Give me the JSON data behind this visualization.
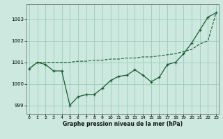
{
  "xlabel": "Graphe pression niveau de la mer (hPa)",
  "background_color": "#cce8df",
  "plot_bg_color": "#cce8df",
  "grid_color": "#99ccbb",
  "line_color": "#1a5c30",
  "x_values": [
    0,
    1,
    2,
    3,
    4,
    5,
    6,
    7,
    8,
    9,
    10,
    11,
    12,
    13,
    14,
    15,
    16,
    17,
    18,
    19,
    20,
    21,
    22,
    23
  ],
  "line1": [
    1000.7,
    1001.0,
    1000.9,
    1000.6,
    1000.6,
    999.0,
    999.4,
    999.5,
    999.5,
    999.8,
    1000.15,
    1000.35,
    1000.4,
    1000.65,
    1000.4,
    1000.1,
    1000.3,
    1000.9,
    1001.0,
    1001.4,
    1001.9,
    1002.5,
    1003.1,
    1003.3
  ],
  "line2": [
    1000.7,
    1001.0,
    1001.0,
    1001.0,
    1001.0,
    1001.0,
    1001.05,
    1001.05,
    1001.1,
    1001.1,
    1001.15,
    1001.15,
    1001.2,
    1001.2,
    1001.25,
    1001.25,
    1001.3,
    1001.35,
    1001.4,
    1001.5,
    1001.6,
    1001.85,
    1002.0,
    1003.3
  ],
  "ylim": [
    998.6,
    1003.7
  ],
  "yticks": [
    999,
    1000,
    1001,
    1002,
    1003
  ],
  "xticks": [
    0,
    1,
    2,
    3,
    4,
    5,
    6,
    7,
    8,
    9,
    10,
    11,
    12,
    13,
    14,
    15,
    16,
    17,
    18,
    19,
    20,
    21,
    22,
    23
  ],
  "xlim": [
    -0.3,
    23.3
  ]
}
